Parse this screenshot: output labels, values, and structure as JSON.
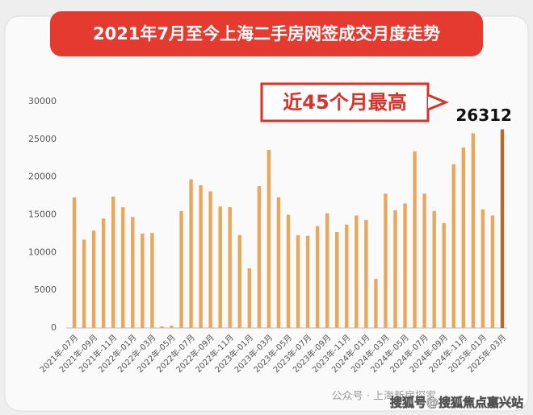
{
  "chart_data": {
    "type": "bar",
    "title": "2021年7月至今上海二手房网签成交月度走势",
    "annotation": "近45个月最高",
    "watermark": "公众号 · 上海新房探家",
    "source": "搜狐号@搜狐焦点嘉兴站",
    "categories": [
      "2021年-07月",
      null,
      "2021年-09月",
      null,
      "2021年-11月",
      null,
      "2022年-01月",
      null,
      "2022年-03月",
      null,
      "2022年-05月",
      null,
      "2022年-07月",
      null,
      "2022年-09月",
      null,
      "2022年-11月",
      null,
      "2023年-01月",
      null,
      "2023年-03月",
      null,
      "2023年-05月",
      null,
      "2023年-07月",
      null,
      "2023年-09月",
      null,
      "2023年-11月",
      null,
      "2024年-01月",
      null,
      "2024年-03月",
      null,
      "2024年-05月",
      null,
      "2024年-07月",
      null,
      "2024年-09月",
      null,
      "2024年-11月",
      null,
      "2025年-01月",
      null,
      "2025年-03月"
    ],
    "values": [
      17300,
      11700,
      12900,
      14500,
      17400,
      16000,
      14700,
      12500,
      12600,
      200,
      300,
      15500,
      19700,
      18900,
      18100,
      16100,
      16000,
      12300,
      7900,
      18800,
      23600,
      17300,
      15000,
      12300,
      12200,
      13500,
      15200,
      12700,
      13700,
      14900,
      14300,
      6500,
      17800,
      15600,
      16500,
      23400,
      17800,
      15500,
      13900,
      21700,
      23900,
      25800,
      15700,
      14900,
      26312
    ],
    "colors": [
      "#e8a85c",
      "#e8a85c",
      "#e8a85c",
      "#e8a85c",
      "#e8a85c",
      "#e8a85c",
      "#e8a85c",
      "#e8a85c",
      "#e8a85c",
      "#e8a85c",
      "#e8a85c",
      "#e8a85c",
      "#e8a85c",
      "#e8a85c",
      "#e8a85c",
      "#e8a85c",
      "#e8a85c",
      "#e8a85c",
      "#e8a85c",
      "#e8a85c",
      "#e8a85c",
      "#e8a85c",
      "#e8a85c",
      "#e8a85c",
      "#e8a85c",
      "#e8a85c",
      "#e8a85c",
      "#e8a85c",
      "#e8a85c",
      "#e8a85c",
      "#e8a85c",
      "#e8a85c",
      "#e8a85c",
      "#e8a85c",
      "#e8a85c",
      "#e8a85c",
      "#e8a85c",
      "#e8a85c",
      "#e8a85c",
      "#e8a85c",
      "#e8a85c",
      "#e8a85c",
      "#e8a85c",
      "#e8a85c",
      "#b5692a"
    ],
    "ylim": [
      0,
      30000
    ],
    "yticks": [
      0,
      5000,
      10000,
      15000,
      20000,
      25000,
      30000
    ],
    "grid": false
  }
}
